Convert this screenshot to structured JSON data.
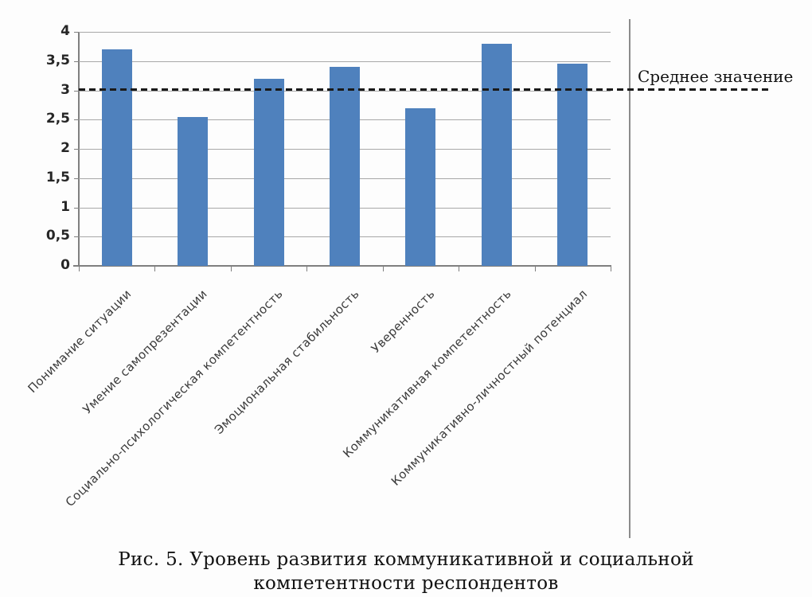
{
  "chart_data": {
    "type": "bar",
    "categories": [
      "Понимание ситуации",
      "Умение самопрезентации",
      "Социально-психологическая компетентность",
      "Эмоциональная стабильность",
      "Уверенность",
      "Коммуникативная компетентность",
      "Коммуникативно-личностный потенциал"
    ],
    "values": [
      3.7,
      2.55,
      3.2,
      3.4,
      2.7,
      3.8,
      3.45
    ],
    "title": "",
    "xlabel": "",
    "ylabel": "",
    "ylim": [
      0,
      4
    ],
    "ytick_values": [
      0,
      0.5,
      1,
      1.5,
      2,
      2.5,
      3,
      3.5,
      4
    ],
    "ytick_labels": [
      "0",
      "0,5",
      "1",
      "1,5",
      "2",
      "2,5",
      "3",
      "3,5",
      "4"
    ],
    "grid": true,
    "legend_position": "none",
    "bar_color": "#4f81bd",
    "mean_line": {
      "value": 3.02,
      "label": "Среднее значение",
      "style": "dashed",
      "color": "#1a1a1a"
    }
  },
  "caption": {
    "line1": "Рис. 5. Уровень развития коммуникативной и социальной",
    "line2": "компетентности респондентов"
  },
  "colors": {
    "bar": "#4f81bd",
    "gridline": "#a8a8a8",
    "axis": "#7f7f7f",
    "chart_border": "#8c8c8c",
    "mean_line": "#1a1a1a",
    "background": "#fdfdfd"
  }
}
